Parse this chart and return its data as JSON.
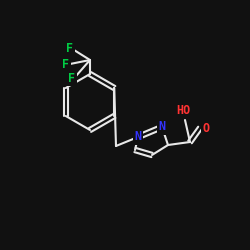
{
  "bg_color": "#111111",
  "bond_color": "#e8e8e8",
  "bond_lw": 1.5,
  "font_size": 8.5,
  "colors": {
    "C": "#e8e8e8",
    "O": "#ff3333",
    "N": "#3333ff",
    "F": "#00cc44",
    "H": "#e8e8e8"
  },
  "figsize": [
    2.5,
    2.5
  ],
  "dpi": 100
}
